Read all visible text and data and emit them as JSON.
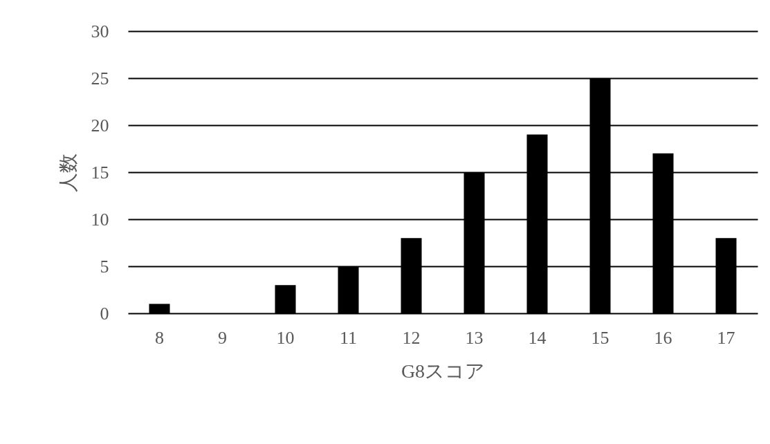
{
  "chart_data": {
    "type": "bar",
    "xlabel": "G8スコア",
    "ylabel": "人数",
    "categories": [
      "8",
      "9",
      "10",
      "11",
      "12",
      "13",
      "14",
      "15",
      "16",
      "17"
    ],
    "values": [
      1,
      0,
      3,
      5,
      8,
      15,
      19,
      25,
      17,
      8
    ],
    "color": "#000000",
    "ylim": [
      0,
      30
    ],
    "yticks": [
      0,
      5,
      10,
      15,
      20,
      25,
      30
    ],
    "grid": "y"
  }
}
